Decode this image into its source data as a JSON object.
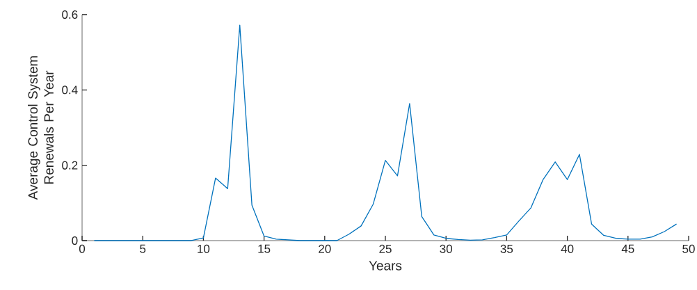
{
  "chart_data": {
    "type": "line",
    "xlabel": "Years",
    "ylabel": "Average Control System Renewals Per Year",
    "x": [
      1,
      2,
      3,
      4,
      5,
      6,
      7,
      8,
      9,
      10,
      11,
      12,
      13,
      14,
      15,
      16,
      17,
      18,
      19,
      20,
      21,
      22,
      23,
      24,
      25,
      26,
      27,
      28,
      29,
      30,
      31,
      32,
      33,
      34,
      35,
      36,
      37,
      38,
      39,
      40,
      41,
      42,
      43,
      44,
      45,
      46,
      47,
      48,
      49
    ],
    "series": [
      {
        "color": "#0072bd",
        "values": [
          0,
          0,
          0,
          0,
          0,
          0,
          0,
          0,
          0,
          0.007,
          0.166,
          0.138,
          0.572,
          0.094,
          0.012,
          0.004,
          0.002,
          0,
          0,
          0,
          0,
          0.017,
          0.039,
          0.097,
          0.213,
          0.172,
          0.364,
          0.064,
          0.015,
          0.006,
          0.003,
          0.001,
          0.002,
          0.008,
          0.015,
          0.052,
          0.087,
          0.162,
          0.209,
          0.162,
          0.229,
          0.044,
          0.014,
          0.006,
          0.004,
          0.004,
          0.01,
          0.024,
          0.044
        ]
      }
    ],
    "xlim": [
      0,
      50
    ],
    "ylim": [
      0,
      0.6
    ],
    "xticks": [
      0,
      5,
      10,
      15,
      20,
      25,
      30,
      35,
      40,
      45,
      50
    ],
    "yticks": [
      0,
      0.2,
      0.4,
      0.6
    ]
  }
}
